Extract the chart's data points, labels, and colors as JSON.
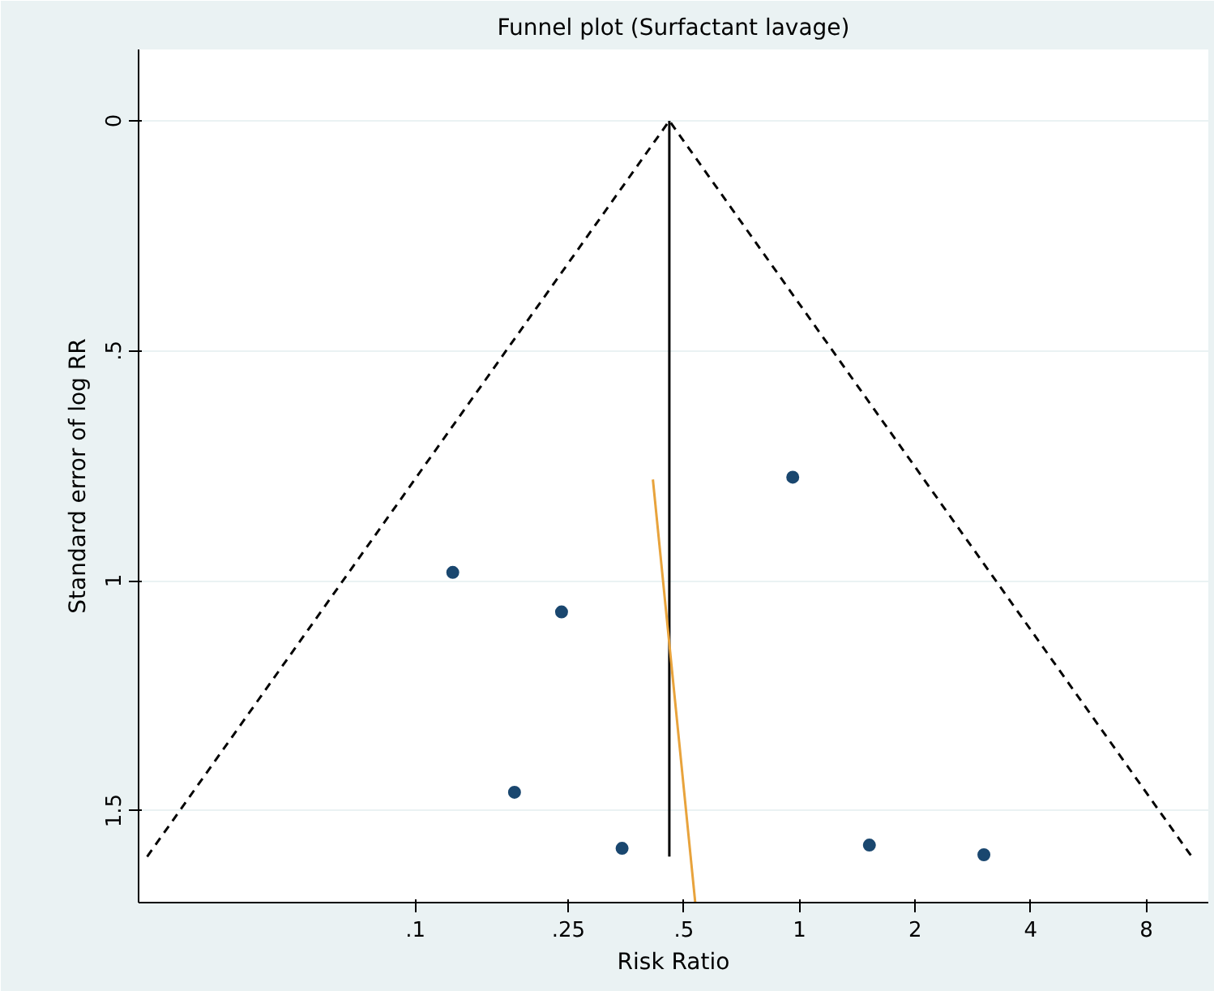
{
  "chart_data": {
    "type": "scatter",
    "title": "Funnel plot (Surfactant lavage)",
    "xlabel": "Risk Ratio",
    "ylabel": "Standard error of log RR",
    "log": "x",
    "grid": "y",
    "xlim": [
      0.019,
      11.6
    ],
    "ylim": [
      1.7,
      -0.155
    ],
    "xticks": [
      {
        "value": 0.1,
        "label": ".1"
      },
      {
        "value": 0.25,
        "label": ".25"
      },
      {
        "value": 0.5,
        "label": ".5"
      },
      1,
      2,
      4,
      8
    ],
    "yticks": [
      0,
      {
        "value": 0.5,
        "label": ".5"
      },
      1,
      {
        "value": 1.5,
        "label": "1.5"
      }
    ],
    "series": [
      {
        "type": "line",
        "line_style": "dashed",
        "marker": "none",
        "color": "#000000",
        "x": [
          0.02,
          0.458,
          10.5
        ],
        "values": [
          1.6,
          0,
          1.6
        ]
      },
      {
        "type": "line",
        "line_style": "solid",
        "marker": "none",
        "color": "#000000",
        "x": [
          0.458,
          0.458
        ],
        "values": [
          0,
          1.6
        ]
      },
      {
        "type": "line",
        "line_style": "solid",
        "marker": "none",
        "color": "#e8a33c",
        "x": [
          0.415,
          0.535
        ],
        "values": [
          0.78,
          1.7
        ]
      },
      {
        "marker": "circle",
        "color": "#1a476f",
        "x": [
          0.96,
          0.125,
          0.24,
          0.181,
          0.345,
          1.52,
          3.02
        ],
        "values": [
          0.775,
          0.982,
          1.068,
          1.46,
          1.582,
          1.575,
          1.596
        ]
      }
    ]
  }
}
